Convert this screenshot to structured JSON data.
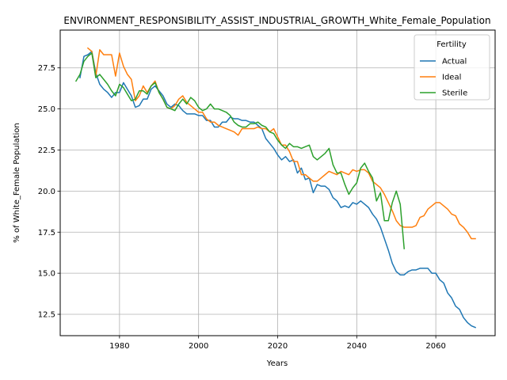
{
  "chart_data": {
    "type": "line",
    "title": "ENVIRONMENT_RESPONSIBILITY_ASSIST_INDUSTRIAL_GROWTH_White_Female_Population",
    "xlabel": "Years",
    "ylabel": "% of White_Female Population",
    "xlim": [
      1965,
      2075
    ],
    "ylim": [
      11.2,
      29.8
    ],
    "xticks": [
      1980,
      2000,
      2020,
      2040,
      2060
    ],
    "yticks": [
      12.5,
      15.0,
      17.5,
      20.0,
      22.5,
      25.0,
      27.5
    ],
    "grid": true,
    "legend": {
      "title": "Fertility",
      "placement": "top-right"
    },
    "series": [
      {
        "name": "Actual",
        "color": "#1f77b4",
        "x": [
          1970,
          1971,
          1972,
          1973,
          1974,
          1975,
          1976,
          1977,
          1978,
          1979,
          1980,
          1981,
          1982,
          1983,
          1984,
          1985,
          1986,
          1987,
          1988,
          1989,
          1990,
          1991,
          1992,
          1993,
          1994,
          1995,
          1996,
          1997,
          1998,
          1999,
          2000,
          2001,
          2002,
          2003,
          2004,
          2005,
          2006,
          2007,
          2008,
          2009,
          2010,
          2011,
          2012,
          2013,
          2014,
          2015,
          2016,
          2017,
          2018,
          2019,
          2020,
          2021,
          2022,
          2023,
          2024,
          2025,
          2026,
          2027,
          2028,
          2029,
          2030,
          2031,
          2032,
          2033,
          2034,
          2035,
          2036,
          2037,
          2038,
          2039,
          2040,
          2041,
          2042,
          2043,
          2044,
          2045,
          2046,
          2047,
          2048,
          2049,
          2050,
          2051,
          2052,
          2053,
          2054,
          2055,
          2056,
          2057,
          2058,
          2059,
          2060,
          2061,
          2062,
          2063,
          2064,
          2065,
          2066,
          2067,
          2068,
          2069,
          2070
        ],
        "values": [
          26.9,
          28.2,
          28.3,
          28.5,
          27.2,
          26.5,
          26.2,
          26.0,
          25.7,
          26.0,
          26.0,
          26.6,
          26.2,
          25.8,
          25.1,
          25.2,
          25.6,
          25.6,
          26.2,
          26.4,
          26.1,
          25.8,
          25.3,
          25.1,
          25.3,
          25.2,
          24.9,
          24.7,
          24.7,
          24.7,
          24.6,
          24.6,
          24.3,
          24.3,
          23.9,
          23.9,
          24.2,
          24.2,
          24.5,
          24.4,
          24.4,
          24.3,
          24.3,
          24.2,
          24.2,
          24.0,
          23.8,
          23.2,
          22.9,
          22.6,
          22.2,
          21.9,
          22.1,
          21.8,
          21.9,
          21.1,
          21.4,
          20.7,
          20.8,
          19.9,
          20.4,
          20.3,
          20.3,
          20.1,
          19.6,
          19.4,
          19.0,
          19.1,
          19.0,
          19.3,
          19.2,
          19.4,
          19.2,
          19.0,
          18.6,
          18.3,
          17.8,
          17.1,
          16.4,
          15.6,
          15.1,
          14.9,
          14.9,
          15.1,
          15.2,
          15.2,
          15.3,
          15.3,
          15.3,
          15.0,
          15.0,
          14.6,
          14.4,
          13.8,
          13.5,
          13.0,
          12.8,
          12.3,
          12.0,
          11.8,
          11.7
        ]
      },
      {
        "name": "Ideal",
        "color": "#ff7f0e",
        "x": [
          1972,
          1973,
          1974,
          1975,
          1976,
          1977,
          1978,
          1979,
          1980,
          1981,
          1982,
          1983,
          1984,
          1985,
          1986,
          1987,
          1988,
          1989,
          1990,
          1991,
          1992,
          1993,
          1994,
          1995,
          1996,
          1997,
          1998,
          1999,
          2000,
          2001,
          2002,
          2003,
          2004,
          2005,
          2006,
          2007,
          2008,
          2009,
          2010,
          2011,
          2012,
          2013,
          2014,
          2015,
          2016,
          2017,
          2018,
          2019,
          2020,
          2021,
          2022,
          2023,
          2024,
          2025,
          2026,
          2027,
          2028,
          2029,
          2030,
          2031,
          2032,
          2033,
          2034,
          2035,
          2036,
          2037,
          2038,
          2039,
          2040,
          2041,
          2042,
          2043,
          2044,
          2045,
          2046,
          2047,
          2048,
          2049,
          2050,
          2051,
          2052,
          2053,
          2054,
          2055,
          2056,
          2057,
          2058,
          2059,
          2060,
          2061,
          2062,
          2063,
          2064,
          2065,
          2066,
          2067,
          2068,
          2069,
          2070
        ],
        "values": [
          28.7,
          28.5,
          27.0,
          28.6,
          28.3,
          28.3,
          28.3,
          27.0,
          28.4,
          27.6,
          27.1,
          26.8,
          25.5,
          25.8,
          26.4,
          26.0,
          26.4,
          26.7,
          26.0,
          25.6,
          25.1,
          25.0,
          25.2,
          25.6,
          25.8,
          25.4,
          25.2,
          25.0,
          24.8,
          24.8,
          24.4,
          24.2,
          24.2,
          24.0,
          23.9,
          23.8,
          23.7,
          23.6,
          23.4,
          23.8,
          23.8,
          23.8,
          23.8,
          23.9,
          23.8,
          23.8,
          23.6,
          23.8,
          23.3,
          22.8,
          22.8,
          22.4,
          21.8,
          21.8,
          21.0,
          21.0,
          20.8,
          20.6,
          20.6,
          20.8,
          21.0,
          21.2,
          21.1,
          21.0,
          21.2,
          21.1,
          21.0,
          21.3,
          21.2,
          21.3,
          21.3,
          21.1,
          20.6,
          20.4,
          20.2,
          19.8,
          19.3,
          18.8,
          18.2,
          17.9,
          17.8,
          17.8,
          17.8,
          17.9,
          18.4,
          18.5,
          18.9,
          19.1,
          19.3,
          19.3,
          19.1,
          18.9,
          18.6,
          18.5,
          18.0,
          17.8,
          17.5,
          17.1,
          17.1
        ]
      },
      {
        "name": "Sterile",
        "color": "#2ca02c",
        "x": [
          1969,
          1970,
          1971,
          1972,
          1973,
          1974,
          1975,
          1976,
          1977,
          1978,
          1979,
          1980,
          1981,
          1982,
          1983,
          1984,
          1985,
          1986,
          1987,
          1988,
          1989,
          1990,
          1991,
          1992,
          1993,
          1994,
          1995,
          1996,
          1997,
          1998,
          1999,
          2000,
          2001,
          2002,
          2003,
          2004,
          2005,
          2006,
          2007,
          2008,
          2009,
          2010,
          2011,
          2012,
          2013,
          2014,
          2015,
          2016,
          2017,
          2018,
          2019,
          2020,
          2021,
          2022,
          2023,
          2024,
          2025,
          2026,
          2027,
          2028,
          2029,
          2030,
          2031,
          2032,
          2033,
          2034,
          2035,
          2036,
          2037,
          2038,
          2039,
          2040,
          2041,
          2042,
          2043,
          2044,
          2045,
          2046,
          2047,
          2048,
          2049,
          2050,
          2051,
          2052
        ],
        "values": [
          26.7,
          27.1,
          27.9,
          28.2,
          28.4,
          26.9,
          27.1,
          26.8,
          26.5,
          26.1,
          25.8,
          26.5,
          26.3,
          25.9,
          25.5,
          25.6,
          26.1,
          26.1,
          25.9,
          26.4,
          26.6,
          26.0,
          25.6,
          25.1,
          25.0,
          24.9,
          25.3,
          25.6,
          25.3,
          25.7,
          25.5,
          25.1,
          24.9,
          25.0,
          25.3,
          25.0,
          25.0,
          24.9,
          24.8,
          24.6,
          24.2,
          24.0,
          23.9,
          23.9,
          24.1,
          24.1,
          24.2,
          24.0,
          23.9,
          23.6,
          23.5,
          23.1,
          22.8,
          22.6,
          22.9,
          22.7,
          22.7,
          22.6,
          22.7,
          22.8,
          22.1,
          21.9,
          22.1,
          22.3,
          22.6,
          21.6,
          21.1,
          21.1,
          20.4,
          19.8,
          20.2,
          20.5,
          21.4,
          21.7,
          21.2,
          20.8,
          19.4,
          19.9,
          18.2,
          18.2,
          19.3,
          20.0,
          19.2,
          16.5
        ]
      }
    ]
  }
}
